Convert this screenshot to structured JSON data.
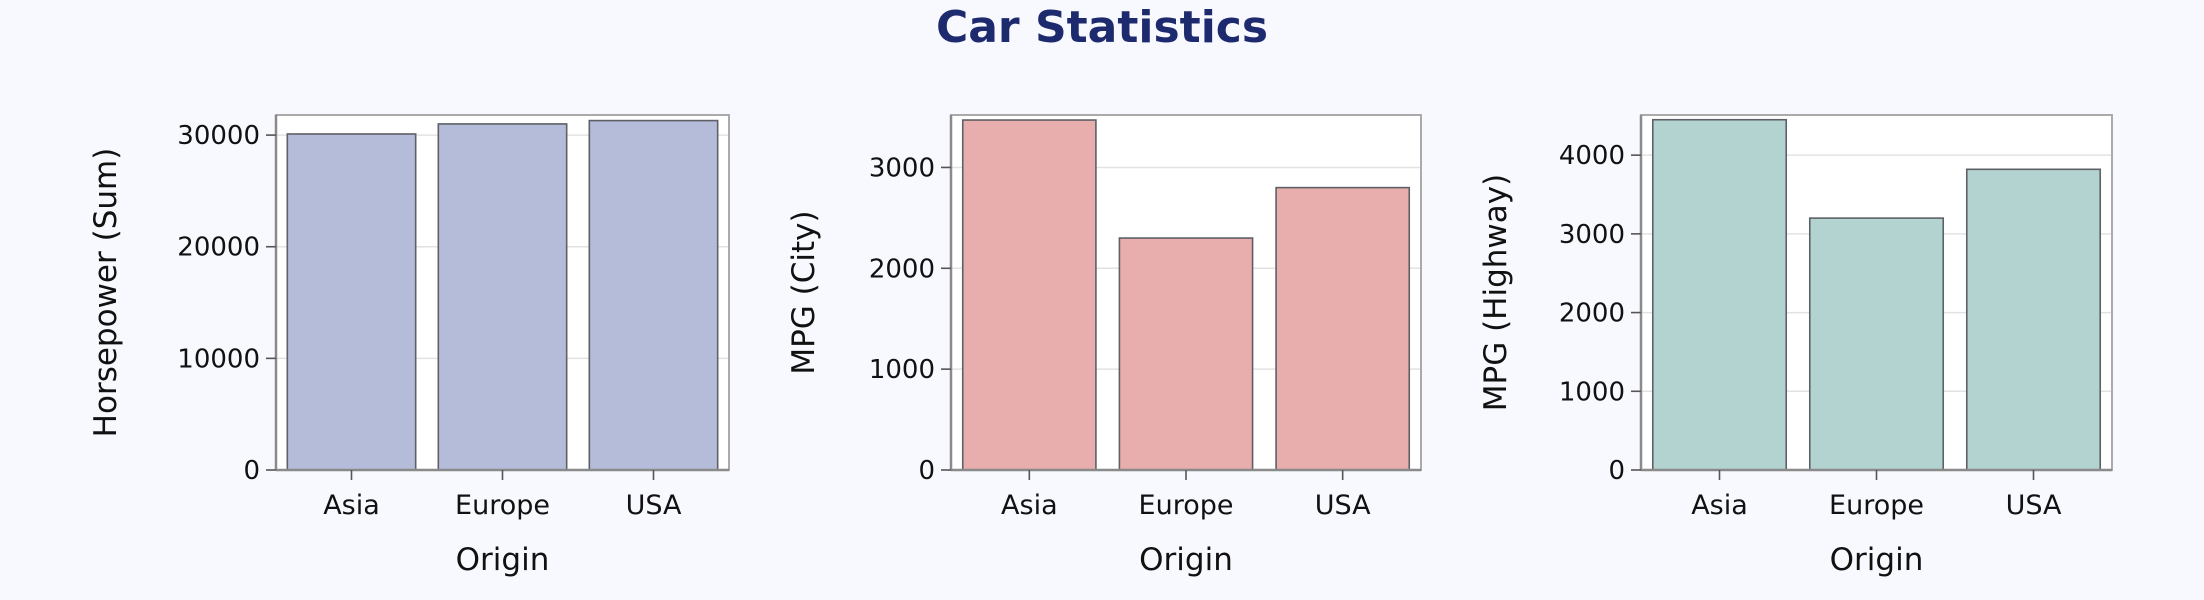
{
  "title": "Car Statistics",
  "chart_data": [
    {
      "type": "bar",
      "categories": [
        "Asia",
        "Europe",
        "USA"
      ],
      "values": [
        30100,
        31000,
        31300
      ],
      "xlabel": "Origin",
      "ylabel": "Horsepower (Sum)",
      "ylim": [
        0,
        31800
      ],
      "yticks": [
        0,
        10000,
        20000,
        30000
      ],
      "grid": true,
      "color": "#b5bcd9"
    },
    {
      "type": "bar",
      "categories": [
        "Asia",
        "Europe",
        "USA"
      ],
      "values": [
        3470,
        2300,
        2800
      ],
      "xlabel": "Origin",
      "ylabel": "MPG (City)",
      "ylim": [
        0,
        3520
      ],
      "yticks": [
        0,
        1000,
        2000,
        3000
      ],
      "grid": true,
      "color": "#e8adad"
    },
    {
      "type": "bar",
      "categories": [
        "Asia",
        "Europe",
        "USA"
      ],
      "values": [
        4450,
        3200,
        3820
      ],
      "xlabel": "Origin",
      "ylabel": "MPG (Highway)",
      "ylim": [
        0,
        4510
      ],
      "yticks": [
        0,
        1000,
        2000,
        3000,
        4000
      ],
      "grid": true,
      "color": "#b3d3d1"
    }
  ]
}
